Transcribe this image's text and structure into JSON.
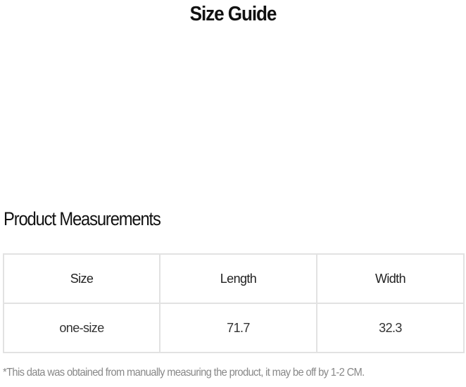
{
  "title": "Size Guide",
  "section_title": "Product Measurements",
  "table": {
    "headers": [
      "Size",
      "Length",
      "Width"
    ],
    "rows": [
      [
        "one-size",
        "71.7",
        "32.3"
      ]
    ]
  },
  "note": "*This data was obtained from manually measuring the product, it may be off by 1-2 CM."
}
